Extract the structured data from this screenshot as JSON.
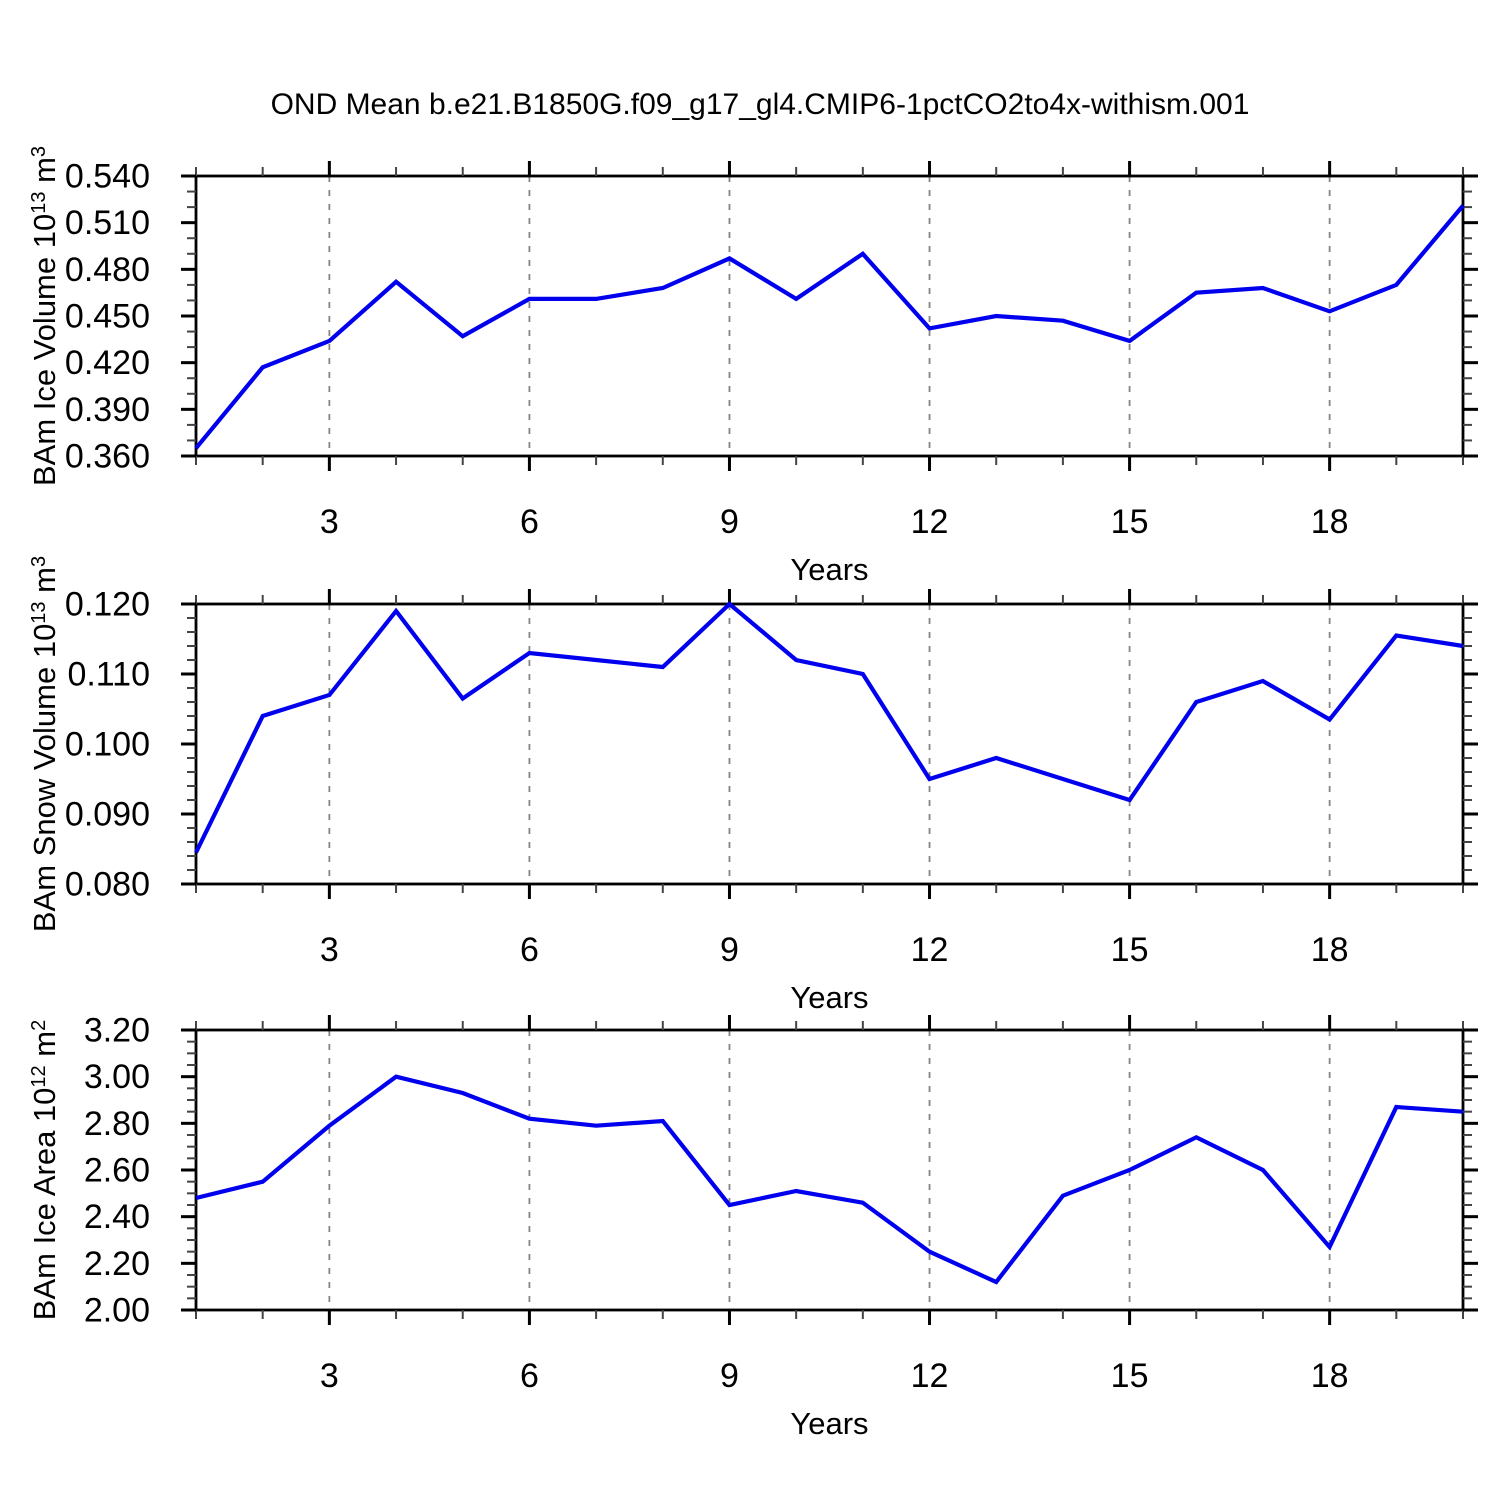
{
  "title": "OND Mean b.e21.B1850G.f09_g17_gl4.CMIP6-1pctCO2to4x-withism.001",
  "colors": {
    "line": "#0000ee",
    "axis": "#000000",
    "minor_tick": "#444444",
    "grid": "#858585",
    "text": "#000000",
    "background": "#ffffff"
  },
  "x_axis": {
    "label": "Years",
    "range": [
      1,
      20
    ],
    "major_ticks": [
      3,
      6,
      9,
      12,
      15,
      18
    ],
    "major_tick_labels": [
      "3",
      "6",
      "9",
      "12",
      "15",
      "18"
    ],
    "minor_step": 1,
    "grid_at_major": true
  },
  "chart_data": [
    {
      "type": "line",
      "name": "ice-volume",
      "ylabel": "BAm Ice Volume 10^13 m^3",
      "ylabel_parts": [
        {
          "t": "BAm Ice Volume 10"
        },
        {
          "t": "13",
          "sup": true
        },
        {
          "t": " m"
        },
        {
          "t": "3",
          "sup": true
        }
      ],
      "xlabel": "Years",
      "ylim": [
        0.36,
        0.54
      ],
      "ytick_labels": [
        "0.360",
        "0.390",
        "0.420",
        "0.450",
        "0.480",
        "0.510",
        "0.540"
      ],
      "y_minor_step": 0.01,
      "x": [
        1,
        2,
        3,
        4,
        5,
        6,
        7,
        8,
        9,
        10,
        11,
        12,
        13,
        14,
        15,
        16,
        17,
        18,
        19,
        20
      ],
      "values": [
        0.365,
        0.417,
        0.434,
        0.472,
        0.437,
        0.461,
        0.461,
        0.468,
        0.487,
        0.461,
        0.49,
        0.442,
        0.45,
        0.447,
        0.434,
        0.465,
        0.468,
        0.453,
        0.47,
        0.521
      ]
    },
    {
      "type": "line",
      "name": "snow-volume",
      "ylabel": "BAm Snow Volume 10^13 m^3",
      "ylabel_parts": [
        {
          "t": "BAm Snow Volume 10"
        },
        {
          "t": "13",
          "sup": true
        },
        {
          "t": " m"
        },
        {
          "t": "3",
          "sup": true
        }
      ],
      "xlabel": "Years",
      "ylim": [
        0.08,
        0.12
      ],
      "ytick_labels": [
        "0.080",
        "0.090",
        "0.100",
        "0.110",
        "0.120"
      ],
      "y_minor_step": 0.002,
      "x": [
        1,
        2,
        3,
        4,
        5,
        6,
        7,
        8,
        9,
        10,
        11,
        12,
        13,
        14,
        15,
        16,
        17,
        18,
        19,
        20
      ],
      "values": [
        0.0845,
        0.104,
        0.107,
        0.119,
        0.1065,
        0.113,
        0.112,
        0.111,
        0.12,
        0.112,
        0.11,
        0.095,
        0.098,
        0.095,
        0.092,
        0.106,
        0.109,
        0.1035,
        0.1155,
        0.114
      ]
    },
    {
      "type": "line",
      "name": "ice-area",
      "ylabel": "BAm Ice Area 10^12 m^2",
      "ylabel_parts": [
        {
          "t": "BAm Ice Area 10"
        },
        {
          "t": "12",
          "sup": true
        },
        {
          "t": " m"
        },
        {
          "t": "2",
          "sup": true
        }
      ],
      "xlabel": "Years",
      "ylim": [
        2.0,
        3.2
      ],
      "ytick_labels": [
        "2.00",
        "2.20",
        "2.40",
        "2.60",
        "2.80",
        "3.00",
        "3.20"
      ],
      "y_minor_step": 0.05,
      "x": [
        1,
        2,
        3,
        4,
        5,
        6,
        7,
        8,
        9,
        10,
        11,
        12,
        13,
        14,
        15,
        16,
        17,
        18,
        19,
        20
      ],
      "values": [
        2.48,
        2.55,
        2.79,
        3.0,
        2.93,
        2.82,
        2.79,
        2.81,
        2.45,
        2.51,
        2.46,
        2.25,
        2.12,
        2.49,
        2.6,
        2.74,
        2.6,
        2.27,
        2.87,
        2.85
      ]
    }
  ]
}
